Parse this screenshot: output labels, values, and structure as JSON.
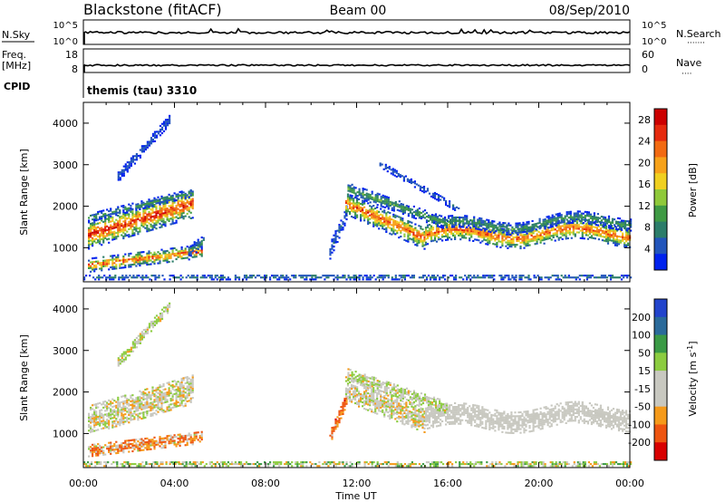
{
  "header": {
    "station": "Blackstone (fitACF)",
    "beam": "Beam 00",
    "date": "08/Sep/2010"
  },
  "top_panels": {
    "nsky": {
      "label": "N.Sky",
      "ticks": [
        "10^5",
        "10^0"
      ],
      "right_label": "N.Search",
      "right_ticks": [
        "10^5",
        "10^0"
      ]
    },
    "freq": {
      "label_line1": "Freq.",
      "label_line2": "[MHz]",
      "ticks": [
        "18",
        "8"
      ],
      "right_label": "Nave",
      "right_ticks": [
        "60",
        "0"
      ]
    },
    "cpid": {
      "label": "CPID",
      "value": "themis (tau) 3310"
    }
  },
  "colors": {
    "power": [
      "#0022ee",
      "#2255bb",
      "#2c7d6a",
      "#3f9a44",
      "#8fc93a",
      "#f0d020",
      "#f7a21a",
      "#f26a12",
      "#e62a0e",
      "#cc0000"
    ],
    "velocity": [
      "#d80000",
      "#ee5510",
      "#f59a1a",
      "#c8c8c0",
      "#c8c8c0",
      "#8ccc40",
      "#3a9a45",
      "#2a6a9a",
      "#2244cc"
    ]
  },
  "chart_data": [
    {
      "type": "heatmap",
      "name": "power",
      "ylabel": "Slant Range [km]",
      "yticks": [
        1000,
        2000,
        3000,
        4000
      ],
      "ylim": [
        180,
        4500
      ],
      "xlim": [
        0,
        24
      ],
      "colorbar": {
        "label": "Power [dB]",
        "ticks": [
          4,
          8,
          12,
          16,
          20,
          24,
          28
        ],
        "range": [
          0,
          30
        ]
      },
      "bands": [
        {
          "t0": 0.2,
          "t1": 4.8,
          "r0": 1300,
          "r1": 2050,
          "w": 340,
          "v0": 27,
          "vs": 16
        },
        {
          "t0": 0.2,
          "t1": 4.7,
          "r0": 1700,
          "r1": 2300,
          "w": 90,
          "v0": 10,
          "vs": 6
        },
        {
          "t0": 0.2,
          "t1": 5.2,
          "r0": 560,
          "r1": 900,
          "w": 160,
          "v0": 24,
          "vs": 18
        },
        {
          "t0": 4.6,
          "t1": 5.3,
          "r0": 900,
          "r1": 1150,
          "w": 140,
          "v0": 9,
          "vs": 6
        },
        {
          "t0": 1.5,
          "t1": 3.8,
          "r0": 2700,
          "r1": 4100,
          "w": 130,
          "v0": 5,
          "vs": 4
        },
        {
          "t0": 10.8,
          "t1": 11.6,
          "r0": 900,
          "r1": 1900,
          "w": 180,
          "v0": 6,
          "vs": 4
        },
        {
          "t0": 11.5,
          "t1": 15.0,
          "r0": 2050,
          "r1": 1200,
          "w": 260,
          "v0": 25,
          "vs": 12
        },
        {
          "t0": 15.0,
          "t1": 24.0,
          "r0": 1300,
          "r1": 1350,
          "w": 240,
          "v0": 24,
          "vs": 12
        },
        {
          "t0": 11.6,
          "t1": 16.0,
          "r0": 2400,
          "r1": 1550,
          "w": 140,
          "v0": 11,
          "vs": 8
        },
        {
          "t0": 16.0,
          "t1": 24.0,
          "r0": 1500,
          "r1": 1650,
          "w": 140,
          "v0": 10,
          "vs": 8
        },
        {
          "t0": 13.0,
          "t1": 16.5,
          "r0": 3000,
          "r1": 1900,
          "w": 80,
          "v0": 6,
          "vs": 3
        },
        {
          "t0": 0.0,
          "t1": 24.0,
          "r0": 280,
          "r1": 280,
          "w": 60,
          "v0": 8,
          "vs": 8
        }
      ]
    },
    {
      "type": "heatmap",
      "name": "velocity",
      "ylabel": "Slant Range [km]",
      "xlabel": "Time UT",
      "yticks": [
        1000,
        2000,
        3000,
        4000
      ],
      "ylim": [
        180,
        4500
      ],
      "xlim": [
        0,
        24
      ],
      "xticks": [
        "00:00",
        "04:00",
        "08:00",
        "12:00",
        "16:00",
        "20:00",
        "00:00"
      ],
      "colorbar": {
        "label": "Velocity [m s^-1]",
        "ticks": [
          "200",
          "100",
          "50",
          "15",
          "-15",
          "-50",
          "-100",
          "-200"
        ]
      },
      "bands": [
        {
          "t0": 0.2,
          "t1": 4.8,
          "r0": 1300,
          "r1": 2050,
          "w": 340,
          "v0": 0,
          "vs": 25
        },
        {
          "t0": 0.2,
          "t1": 5.2,
          "r0": 580,
          "r1": 900,
          "w": 150,
          "v0": -40,
          "vs": 60
        },
        {
          "t0": 1.5,
          "t1": 3.8,
          "r0": 2700,
          "r1": 4100,
          "w": 130,
          "v0": 10,
          "vs": 30
        },
        {
          "t0": 10.8,
          "t1": 11.6,
          "r0": 900,
          "r1": 1900,
          "w": 150,
          "v0": -60,
          "vs": 50
        },
        {
          "t0": 11.5,
          "t1": 15.0,
          "r0": 2050,
          "r1": 1300,
          "w": 300,
          "v0": 0,
          "vs": 25
        },
        {
          "t0": 15.0,
          "t1": 24.0,
          "r0": 1350,
          "r1": 1400,
          "w": 260,
          "v0": 0,
          "vs": 12
        },
        {
          "t0": 11.6,
          "t1": 16.0,
          "r0": 2400,
          "r1": 1600,
          "w": 140,
          "v0": 10,
          "vs": 30
        },
        {
          "t0": 0.0,
          "t1": 24.0,
          "r0": 260,
          "r1": 260,
          "w": 60,
          "v0": 20,
          "vs": 60
        }
      ]
    }
  ]
}
